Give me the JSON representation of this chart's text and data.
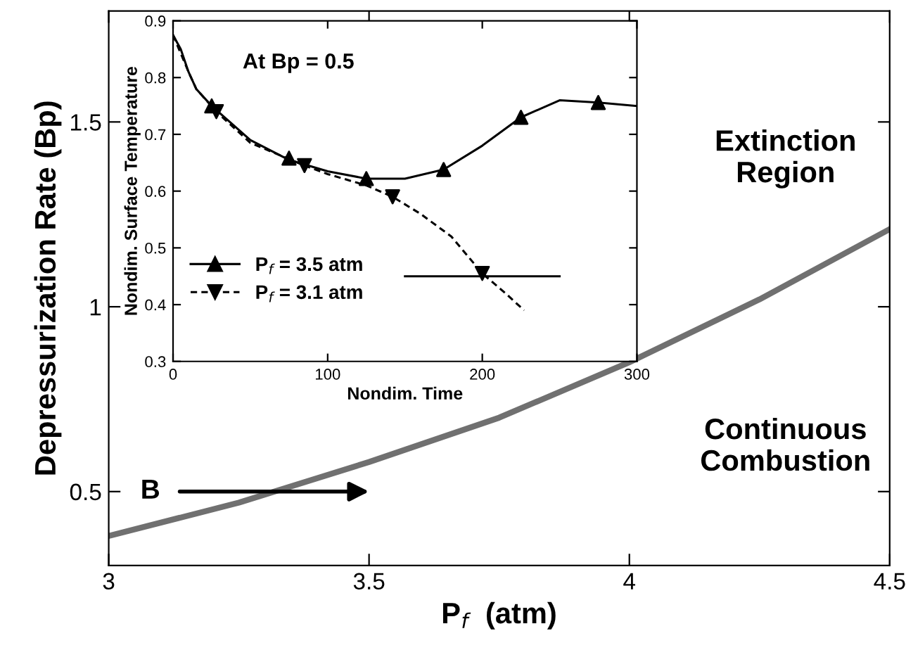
{
  "chart_data": [
    {
      "type": "line",
      "xlabel": "P$_{f}$  (atm)",
      "ylabel": "Depressurization Rate (Bp)",
      "xlim": [
        3,
        4.5
      ],
      "ylim": [
        0.3,
        1.8
      ],
      "xticks": [
        3,
        3.5,
        4,
        4.5
      ],
      "yticks": [
        0.5,
        1,
        1.5
      ],
      "grid": false,
      "legend": false,
      "series": [
        {
          "x": [
            3,
            3.25,
            3.5,
            3.75,
            4,
            4.25,
            4.5
          ],
          "values": [
            0.38,
            0.47,
            0.58,
            0.7,
            0.85,
            1.02,
            1.21
          ],
          "color": "#707070",
          "marker": "none",
          "line_style": "solid"
        }
      ],
      "annotations": [
        "Extinction\nRegion",
        "Continuous\nCombustion",
        "B"
      ]
    },
    {
      "type": "line",
      "xlabel": "Nondim. Time",
      "ylabel": "Nondim. Surface Temperature",
      "xlim": [
        0,
        300
      ],
      "ylim": [
        0.3,
        0.9
      ],
      "xticks": [
        0,
        100,
        200,
        300
      ],
      "yticks": [
        0.3,
        0.4,
        0.5,
        0.6,
        0.7,
        0.8,
        0.9
      ],
      "grid": false,
      "legend": "bottom left",
      "series": [
        {
          "x": [
            0,
            5,
            10,
            15,
            25,
            50,
            75,
            100,
            125,
            150,
            175,
            200,
            225,
            250,
            275,
            300
          ],
          "values": [
            0.875,
            0.85,
            0.81,
            0.78,
            0.75,
            0.69,
            0.655,
            0.635,
            0.622,
            0.622,
            0.638,
            0.68,
            0.73,
            0.76,
            0.756,
            0.75
          ],
          "color": "#000000",
          "marker": "none",
          "line_style": "solid"
        },
        {
          "type": "scatter",
          "name": "P$_{f}$ = 3.5 atm",
          "x": [
            25,
            75,
            125,
            175,
            225,
            275
          ],
          "values": [
            0.75,
            0.658,
            0.622,
            0.638,
            0.73,
            0.756
          ],
          "color": "#000000",
          "marker": "triangle",
          "line_style": "solid"
        },
        {
          "x": [
            0,
            10,
            15,
            28,
            50,
            85,
            100,
            125,
            142,
            160,
            180,
            200,
            215,
            227
          ],
          "values": [
            0.875,
            0.81,
            0.78,
            0.74,
            0.685,
            0.645,
            0.63,
            0.61,
            0.59,
            0.56,
            0.52,
            0.455,
            0.42,
            0.39
          ],
          "color": "#000000",
          "marker": "none",
          "line_style": "dashed"
        },
        {
          "type": "scatter",
          "name": "P$_{f}$ = 3.1 atm",
          "x": [
            28,
            85,
            142,
            200
          ],
          "values": [
            0.74,
            0.645,
            0.59,
            0.455
          ],
          "color": "#000000",
          "marker": "triangle_down",
          "line_style": "dashed"
        },
        {
          "x": [
            150,
            250
          ],
          "values": [
            0.45,
            0.45
          ],
          "color": "#000000",
          "marker": "none",
          "line_style": "solid"
        }
      ],
      "annotations": [
        "At Bp = 0.5"
      ]
    }
  ]
}
